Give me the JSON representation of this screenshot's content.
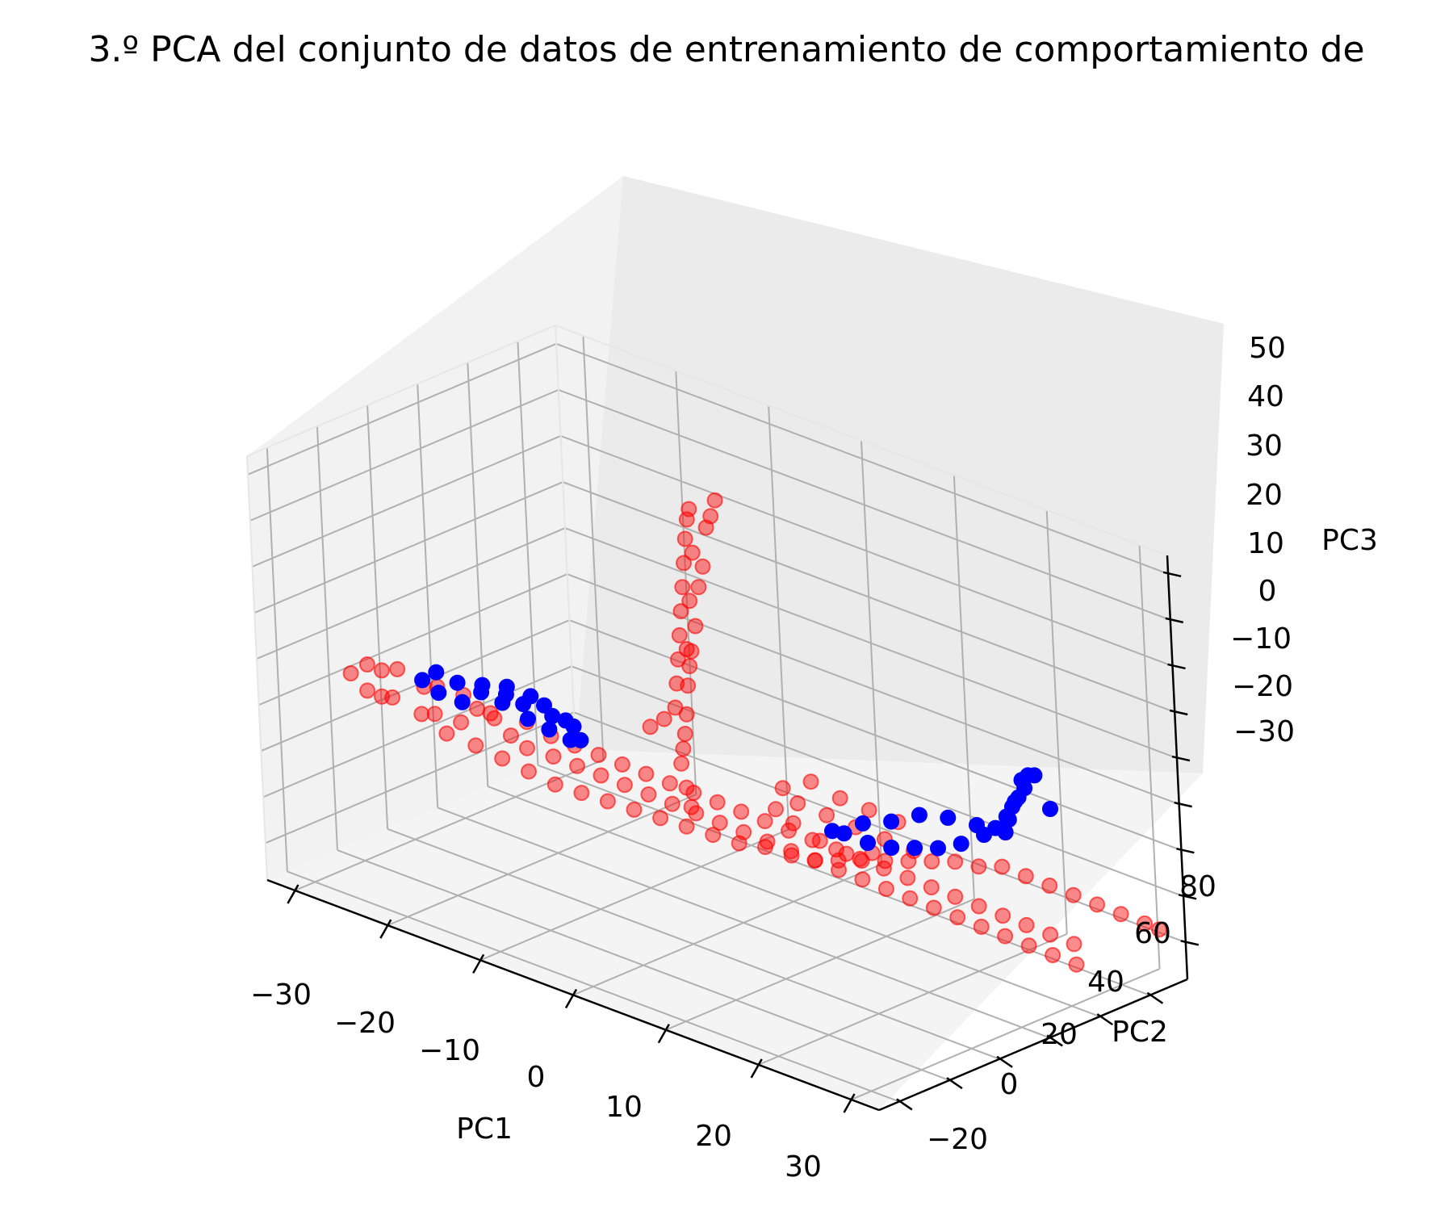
{
  "chart_data": {
    "type": "scatter",
    "projection": "3d",
    "title": "3.º PCA del conjunto de datos de entrenamiento de comportamiento de",
    "xlabel": "PC1",
    "ylabel": "PC2",
    "zlabel": "PC3",
    "xticks": [
      "−30",
      "−20",
      "−10",
      "0",
      "10",
      "20",
      "30"
    ],
    "yticks": [
      "−20",
      "0",
      "20",
      "40",
      "60",
      "80"
    ],
    "zticks": [
      "−30",
      "−20",
      "−10",
      "0",
      "10",
      "20",
      "30",
      "40",
      "50"
    ],
    "xlim": [
      -33,
      33
    ],
    "ylim": [
      -28,
      95
    ],
    "zlim": [
      -38,
      54
    ],
    "grid": true,
    "series": [
      {
        "color": "#ff0000",
        "alpha": 0.45,
        "approximate_points": [
          [
            -32,
            5,
            0
          ],
          [
            -31,
            8,
            2
          ],
          [
            -30,
            4,
            -2
          ],
          [
            -30,
            10,
            1
          ],
          [
            -29,
            6,
            -3
          ],
          [
            -28,
            9,
            3
          ],
          [
            -27,
            3,
            -1
          ],
          [
            -26,
            12,
            0
          ],
          [
            -25,
            7,
            -4
          ],
          [
            -24,
            10,
            2
          ],
          [
            -23,
            5,
            -2
          ],
          [
            -22,
            13,
            1
          ],
          [
            -21,
            8,
            -3
          ],
          [
            -20,
            11,
            0
          ],
          [
            -19,
            14,
            -2
          ],
          [
            -18,
            9,
            1
          ],
          [
            -17,
            13,
            -4
          ],
          [
            -16,
            16,
            -1
          ],
          [
            -15,
            12,
            -5
          ],
          [
            -14,
            18,
            -3
          ],
          [
            -13,
            15,
            -6
          ],
          [
            -12,
            20,
            -4
          ],
          [
            -11,
            17,
            -7
          ],
          [
            -10,
            22,
            -5
          ],
          [
            -9,
            19,
            -8
          ],
          [
            -8,
            24,
            -6
          ],
          [
            -7,
            21,
            -9
          ],
          [
            -6,
            26,
            -7
          ],
          [
            -5,
            23,
            -10
          ],
          [
            -4,
            28,
            -8
          ],
          [
            -3,
            25,
            -11
          ],
          [
            -2,
            30,
            -9
          ],
          [
            -1,
            27,
            -12
          ],
          [
            0,
            32,
            -10
          ],
          [
            1,
            29,
            -13
          ],
          [
            2,
            34,
            -11
          ],
          [
            3,
            31,
            -14
          ],
          [
            4,
            36,
            -12
          ],
          [
            5,
            33,
            -15
          ],
          [
            6,
            38,
            -13
          ],
          [
            7,
            35,
            -16
          ],
          [
            8,
            40,
            -14
          ],
          [
            9,
            37,
            -17
          ],
          [
            10,
            42,
            -15
          ],
          [
            11,
            39,
            -18
          ],
          [
            12,
            44,
            -16
          ],
          [
            13,
            41,
            -19
          ],
          [
            14,
            46,
            -17
          ],
          [
            15,
            43,
            -20
          ],
          [
            16,
            48,
            -18
          ],
          [
            17,
            45,
            -21
          ],
          [
            18,
            50,
            -19
          ],
          [
            19,
            47,
            -22
          ],
          [
            20,
            52,
            -20
          ],
          [
            21,
            49,
            -23
          ],
          [
            22,
            54,
            -21
          ],
          [
            23,
            51,
            -24
          ],
          [
            24,
            56,
            -22
          ],
          [
            25,
            53,
            -25
          ],
          [
            26,
            58,
            -23
          ],
          [
            27,
            55,
            -26
          ],
          [
            28,
            60,
            -24
          ],
          [
            29,
            57,
            -27
          ],
          [
            30,
            62,
            -25
          ],
          [
            31,
            59,
            -28
          ],
          [
            -26,
            20,
            -12
          ],
          [
            -24,
            24,
            -14
          ],
          [
            -22,
            27,
            -16
          ],
          [
            -20,
            30,
            -18
          ],
          [
            -18,
            33,
            -20
          ],
          [
            -16,
            36,
            -21
          ],
          [
            -14,
            39,
            -22
          ],
          [
            -12,
            42,
            -23
          ],
          [
            -10,
            45,
            -24
          ],
          [
            -8,
            48,
            -25
          ],
          [
            -6,
            51,
            -26
          ],
          [
            -4,
            54,
            -27
          ],
          [
            -2,
            57,
            -27
          ],
          [
            0,
            60,
            -28
          ],
          [
            2,
            62,
            -28
          ],
          [
            4,
            64,
            -27
          ],
          [
            6,
            66,
            -26
          ],
          [
            8,
            68,
            -25
          ],
          [
            10,
            70,
            -24
          ],
          [
            12,
            72,
            -23
          ],
          [
            14,
            74,
            -22
          ],
          [
            16,
            76,
            -22
          ],
          [
            18,
            78,
            -21
          ],
          [
            20,
            80,
            -22
          ],
          [
            22,
            82,
            -23
          ],
          [
            24,
            84,
            -24
          ],
          [
            26,
            86,
            -25
          ],
          [
            28,
            88,
            -26
          ],
          [
            30,
            90,
            -27
          ],
          [
            31,
            92,
            -28
          ],
          [
            -12,
            60,
            -5
          ],
          [
            -12,
            61,
            0
          ],
          [
            -12,
            62,
            5
          ],
          [
            -12,
            63,
            10
          ],
          [
            -12,
            64,
            15
          ],
          [
            -12,
            65,
            20
          ],
          [
            -12,
            66,
            25
          ],
          [
            -12,
            67,
            30
          ],
          [
            -12,
            68,
            34
          ],
          [
            -12,
            69,
            36
          ],
          [
            -11,
            62,
            8
          ],
          [
            -11,
            64,
            18
          ],
          [
            -11,
            66,
            28
          ],
          [
            -13,
            59,
            -8
          ],
          [
            -14,
            57,
            -10
          ],
          [
            -6,
            58,
            45
          ],
          [
            -6,
            56,
            42
          ],
          [
            -6,
            54,
            40
          ],
          [
            -6,
            52,
            32
          ],
          [
            -6,
            50,
            28
          ],
          [
            -6,
            48,
            20
          ],
          [
            -6,
            46,
            15
          ],
          [
            -6,
            45,
            12
          ],
          [
            -6,
            44,
            8
          ],
          [
            -6,
            43,
            2
          ],
          [
            -6,
            42,
            -2
          ],
          [
            -6,
            41,
            -5
          ],
          [
            -6,
            40,
            -8
          ],
          [
            -5,
            38,
            -12
          ],
          [
            -4,
            36,
            -15
          ],
          [
            5,
            40,
            -5
          ],
          [
            6,
            42,
            -8
          ],
          [
            7,
            44,
            -3
          ],
          [
            8,
            46,
            -10
          ],
          [
            9,
            48,
            -6
          ],
          [
            10,
            50,
            -12
          ],
          [
            11,
            52,
            -8
          ],
          [
            12,
            54,
            -14
          ],
          [
            13,
            56,
            -10
          ],
          [
            14,
            58,
            -16
          ],
          [
            3,
            44,
            -12
          ],
          [
            4,
            47,
            -15
          ],
          [
            6,
            50,
            -18
          ],
          [
            8,
            53,
            -20
          ],
          [
            10,
            56,
            -19
          ]
        ]
      },
      {
        "color": "#0000ff",
        "alpha": 1.0,
        "approximate_points": [
          [
            -27,
            15,
            0
          ],
          [
            -26,
            17,
            2
          ],
          [
            -25,
            14,
            -1
          ],
          [
            -24,
            18,
            1
          ],
          [
            -23,
            16,
            -2
          ],
          [
            -22,
            20,
            0
          ],
          [
            -21,
            17,
            3
          ],
          [
            -20,
            21,
            -1
          ],
          [
            -19,
            19,
            2
          ],
          [
            -18,
            22,
            0
          ],
          [
            -17,
            20,
            -2
          ],
          [
            -16,
            23,
            1
          ],
          [
            -15,
            21,
            -3
          ],
          [
            -14,
            24,
            -1
          ],
          [
            -13,
            22,
            -4
          ],
          [
            -20,
            23,
            2
          ],
          [
            -18,
            25,
            1
          ],
          [
            -16,
            26,
            -2
          ],
          [
            -14,
            27,
            -3
          ],
          [
            -13,
            26,
            -5
          ],
          [
            18,
            80,
            -14
          ],
          [
            19,
            78,
            -10
          ],
          [
            20,
            76,
            -6
          ],
          [
            21,
            75,
            -3
          ],
          [
            22,
            74,
            0
          ],
          [
            22,
            73,
            2
          ],
          [
            23,
            72,
            4
          ],
          [
            24,
            71,
            5
          ],
          [
            22,
            70,
            -2
          ],
          [
            21,
            70,
            -6
          ],
          [
            20,
            69,
            -9
          ],
          [
            19,
            68,
            -11
          ],
          [
            17,
            66,
            -14
          ],
          [
            15,
            64,
            -16
          ],
          [
            13,
            62,
            -17
          ],
          [
            11,
            60,
            -18
          ],
          [
            9,
            58,
            -18
          ],
          [
            7,
            56,
            -17
          ],
          [
            6,
            55,
            -17
          ],
          [
            8,
            60,
            -15
          ],
          [
            10,
            64,
            -14
          ],
          [
            12,
            68,
            -12
          ],
          [
            14,
            72,
            -12
          ],
          [
            16,
            76,
            -13
          ],
          [
            25,
            73,
            -2
          ]
        ]
      }
    ]
  }
}
